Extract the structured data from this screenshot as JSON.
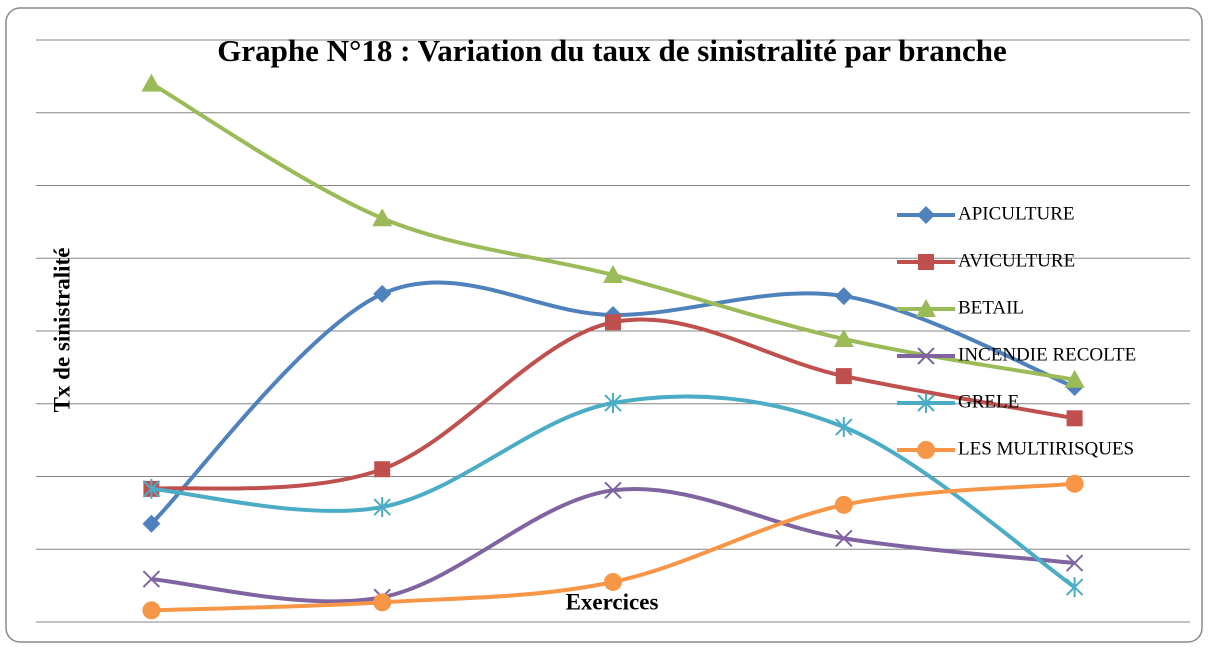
{
  "chart_data": {
    "type": "line",
    "title": "Graphe N°18 : Variation du taux de sinistralité par branche",
    "x_label": "Exercices",
    "y_label": "Tx de sinistralité",
    "categories": [
      null,
      null,
      null,
      null,
      null
    ],
    "ylim": [
      0,
      8
    ],
    "yticks": [
      0,
      1,
      2,
      3,
      4,
      5,
      6,
      7,
      8
    ],
    "grid": true,
    "show_tick_labels": false,
    "smooth": true,
    "legend": "right",
    "series": [
      {
        "name": "APICULTURE",
        "color": "#4f81bd",
        "marker": "diamond",
        "values": [
          1.35,
          4.51,
          4.22,
          4.48,
          3.23
        ]
      },
      {
        "name": "AVICULTURE",
        "color": "#c0504d",
        "marker": "square",
        "values": [
          1.83,
          2.1,
          4.12,
          3.38,
          2.8
        ]
      },
      {
        "name": "BETAIL",
        "color": "#9bbb59",
        "marker": "triangle",
        "values": [
          7.4,
          5.55,
          4.77,
          3.89,
          3.33
        ]
      },
      {
        "name": "INCENDIE RECOLTE",
        "color": "#8064a2",
        "marker": "x",
        "values": [
          0.59,
          0.34,
          1.81,
          1.15,
          0.81
        ]
      },
      {
        "name": "GRELE",
        "color": "#4bacc6",
        "marker": "star",
        "values": [
          1.83,
          1.58,
          3.01,
          2.68,
          0.48
        ]
      },
      {
        "name": "LES MULTIRISQUES",
        "color": "#f79646",
        "marker": "circle",
        "values": [
          0.16,
          0.27,
          0.55,
          1.61,
          1.9
        ]
      }
    ]
  }
}
